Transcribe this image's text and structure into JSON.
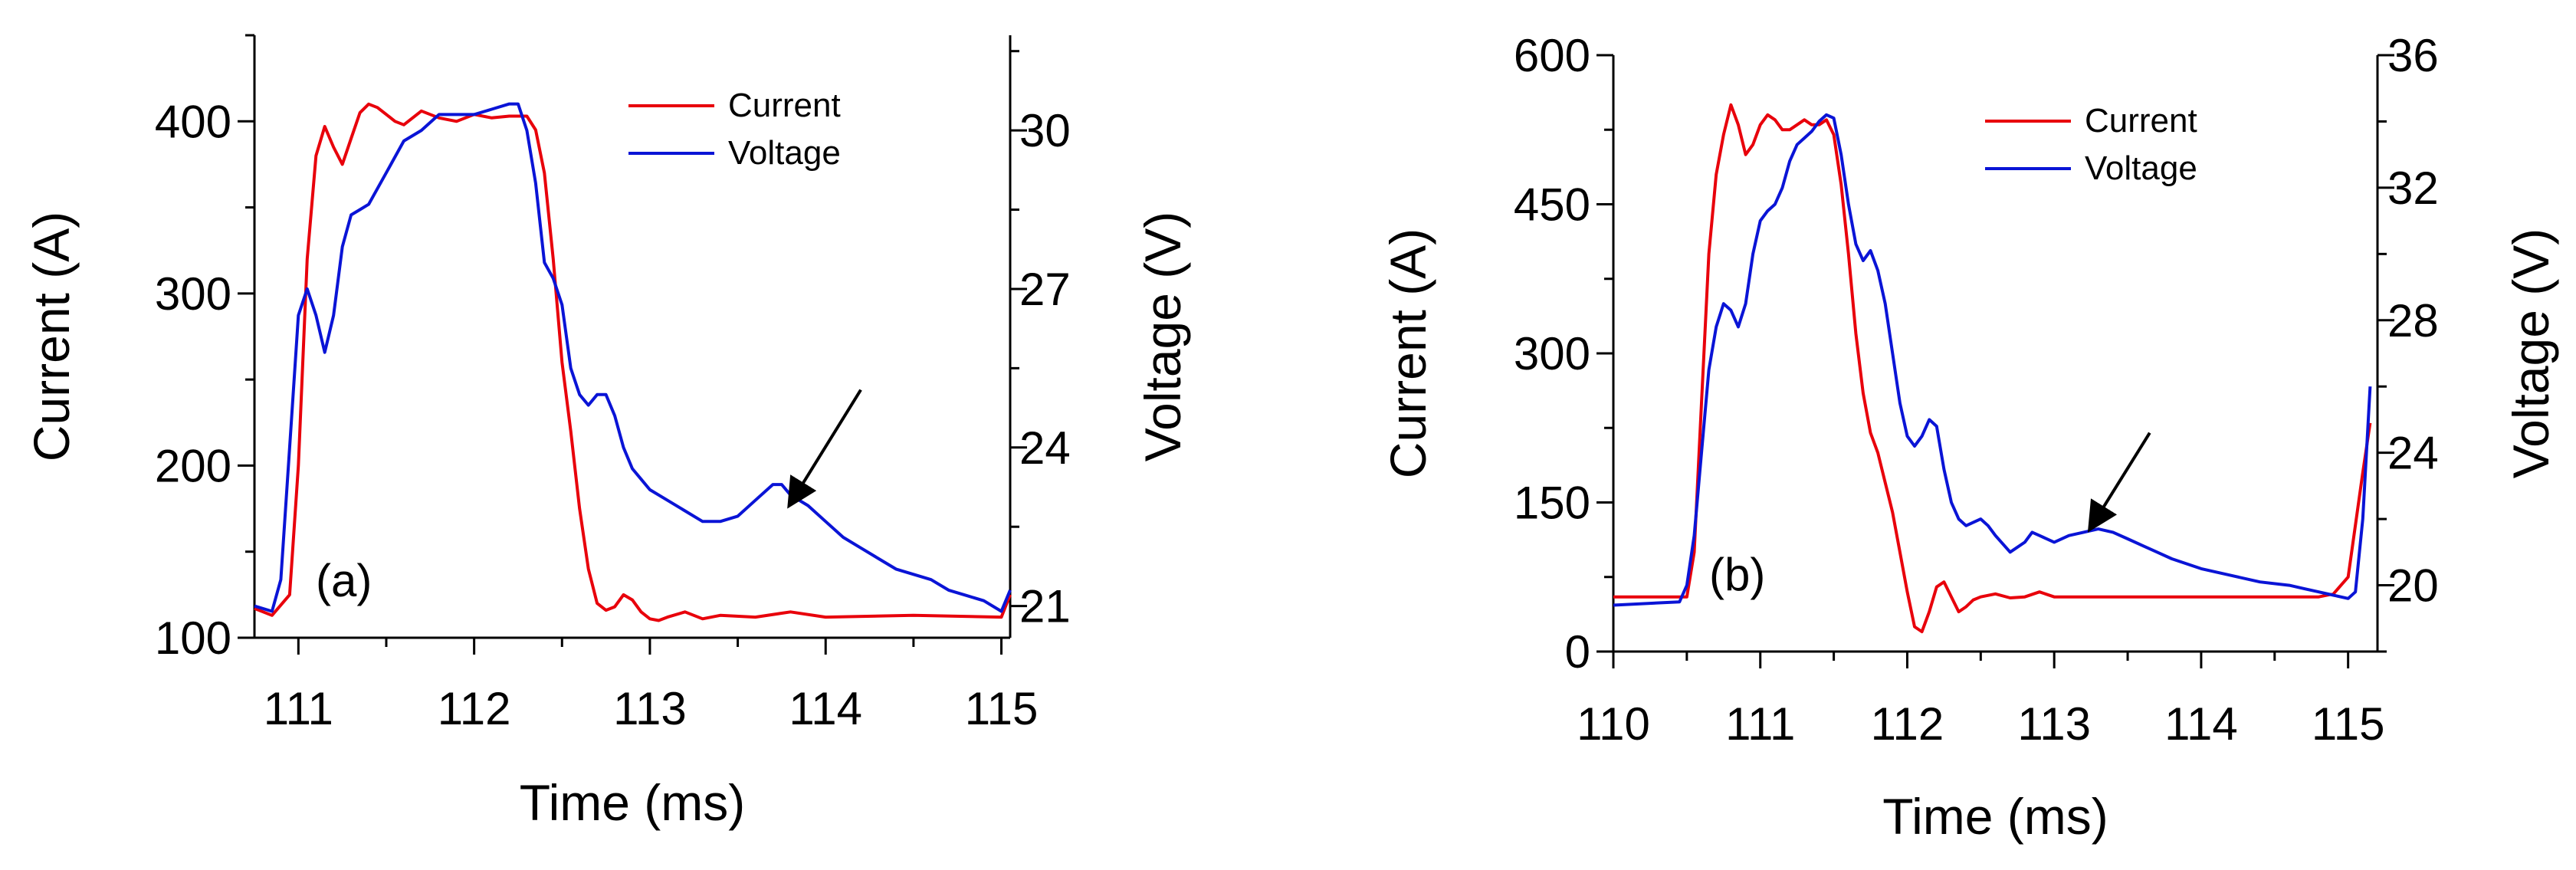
{
  "colors": {
    "current": "#e8000b",
    "voltage": "#0a14d6",
    "axis": "#000000",
    "arrow": "#000000"
  },
  "chart_data": [
    {
      "type": "line",
      "panel_label": "(a)",
      "xlabel": "Time (ms)",
      "ylabel": "Current (A)",
      "y2label": "Voltage (V)",
      "xlim": [
        110.75,
        115.05
      ],
      "ylim": [
        100,
        450
      ],
      "y2lim": [
        20.4,
        31.8
      ],
      "xticks": [
        111,
        112,
        113,
        114,
        115
      ],
      "yticks": [
        100,
        200,
        300,
        400
      ],
      "y2ticks": [
        21,
        24,
        27,
        30
      ],
      "legend": [
        "Current",
        "Voltage"
      ],
      "legend_position": "top-right",
      "arrow": {
        "from": [
          114.2,
          244
        ],
        "to": [
          113.8,
          178
        ]
      },
      "series": [
        {
          "name": "Current",
          "axis": "left",
          "x": [
            110.75,
            110.85,
            110.95,
            111.0,
            111.05,
            111.1,
            111.15,
            111.2,
            111.25,
            111.3,
            111.35,
            111.4,
            111.45,
            111.5,
            111.55,
            111.6,
            111.7,
            111.8,
            111.9,
            112.0,
            112.1,
            112.2,
            112.3,
            112.35,
            112.4,
            112.45,
            112.5,
            112.55,
            112.6,
            112.65,
            112.7,
            112.75,
            112.8,
            112.85,
            112.9,
            112.95,
            113.0,
            113.05,
            113.1,
            113.2,
            113.3,
            113.4,
            113.6,
            113.8,
            114.0,
            114.5,
            115.0,
            115.05
          ],
          "y": [
            117,
            113,
            125,
            200,
            320,
            380,
            397,
            385,
            375,
            390,
            405,
            410,
            408,
            404,
            400,
            398,
            406,
            402,
            400,
            404,
            402,
            403,
            403,
            395,
            370,
            320,
            260,
            220,
            175,
            140,
            120,
            116,
            118,
            125,
            122,
            115,
            111,
            110,
            112,
            115,
            111,
            113,
            112,
            115,
            112,
            113,
            112,
            125
          ]
        },
        {
          "name": "Voltage",
          "axis": "right",
          "x": [
            110.75,
            110.85,
            110.9,
            110.95,
            111.0,
            111.05,
            111.1,
            111.15,
            111.2,
            111.25,
            111.3,
            111.35,
            111.4,
            111.5,
            111.6,
            111.7,
            111.8,
            111.9,
            112.0,
            112.1,
            112.2,
            112.25,
            112.3,
            112.35,
            112.4,
            112.45,
            112.5,
            112.55,
            112.6,
            112.65,
            112.7,
            112.75,
            112.8,
            112.85,
            112.9,
            112.95,
            113.0,
            113.1,
            113.2,
            113.3,
            113.4,
            113.5,
            113.6,
            113.7,
            113.75,
            113.8,
            113.9,
            114.0,
            114.1,
            114.2,
            114.3,
            114.4,
            114.5,
            114.6,
            114.7,
            114.8,
            114.9,
            115.0,
            115.05
          ],
          "y": [
            21.0,
            20.9,
            21.5,
            24.0,
            26.5,
            27.0,
            26.5,
            25.8,
            26.5,
            27.8,
            28.4,
            28.5,
            28.6,
            29.2,
            29.8,
            30.0,
            30.3,
            30.3,
            30.3,
            30.4,
            30.5,
            30.5,
            30.0,
            29.0,
            27.5,
            27.2,
            26.7,
            25.5,
            25.0,
            24.8,
            25.0,
            25.0,
            24.6,
            24.0,
            23.6,
            23.4,
            23.2,
            23.0,
            22.8,
            22.6,
            22.6,
            22.7,
            23.0,
            23.3,
            23.3,
            23.1,
            22.9,
            22.6,
            22.3,
            22.1,
            21.9,
            21.7,
            21.6,
            21.5,
            21.3,
            21.2,
            21.1,
            20.9,
            21.3
          ]
        }
      ]
    },
    {
      "type": "line",
      "panel_label": "(b)",
      "xlabel": "Time (ms)",
      "ylabel": "Current (A)",
      "y2label": "Voltage (V)",
      "xlim": [
        110,
        115.2
      ],
      "ylim": [
        0,
        600
      ],
      "y2lim": [
        18.0,
        36.0
      ],
      "xticks": [
        110,
        111,
        112,
        113,
        114,
        115
      ],
      "yticks": [
        0,
        150,
        300,
        450,
        600
      ],
      "y2ticks": [
        20,
        24,
        28,
        32,
        36
      ],
      "legend": [
        "Current",
        "Voltage"
      ],
      "legend_position": "top-right",
      "arrow": {
        "from": [
          113.65,
          220
        ],
        "to": [
          113.25,
          125
        ]
      },
      "series": [
        {
          "name": "Current",
          "axis": "left",
          "x": [
            110.0,
            110.5,
            110.55,
            110.6,
            110.65,
            110.7,
            110.75,
            110.8,
            110.85,
            110.9,
            110.95,
            111.0,
            111.05,
            111.1,
            111.15,
            111.2,
            111.25,
            111.3,
            111.35,
            111.4,
            111.45,
            111.5,
            111.55,
            111.6,
            111.65,
            111.7,
            111.75,
            111.8,
            111.85,
            111.9,
            111.95,
            112.0,
            112.05,
            112.1,
            112.15,
            112.2,
            112.25,
            112.3,
            112.35,
            112.4,
            112.45,
            112.5,
            112.6,
            112.7,
            112.8,
            112.9,
            113.0,
            113.5,
            114.0,
            114.5,
            114.8,
            114.9,
            115.0,
            115.1,
            115.15
          ],
          "y": [
            55,
            55,
            100,
            250,
            400,
            480,
            520,
            550,
            530,
            500,
            510,
            530,
            540,
            535,
            525,
            525,
            530,
            535,
            530,
            530,
            535,
            520,
            470,
            400,
            320,
            260,
            220,
            200,
            170,
            140,
            100,
            60,
            25,
            20,
            40,
            65,
            70,
            55,
            40,
            45,
            52,
            55,
            58,
            54,
            55,
            60,
            55,
            55,
            55,
            55,
            55,
            58,
            75,
            180,
            230
          ]
        },
        {
          "name": "Voltage",
          "axis": "right",
          "x": [
            110.0,
            110.45,
            110.5,
            110.55,
            110.6,
            110.65,
            110.7,
            110.75,
            110.8,
            110.85,
            110.9,
            110.95,
            111.0,
            111.05,
            111.1,
            111.15,
            111.2,
            111.25,
            111.3,
            111.35,
            111.4,
            111.45,
            111.5,
            111.55,
            111.6,
            111.65,
            111.7,
            111.75,
            111.8,
            111.85,
            111.9,
            111.95,
            112.0,
            112.05,
            112.1,
            112.15,
            112.2,
            112.25,
            112.3,
            112.35,
            112.4,
            112.45,
            112.5,
            112.55,
            112.6,
            112.7,
            112.8,
            112.85,
            112.9,
            113.0,
            113.1,
            113.2,
            113.3,
            113.4,
            113.5,
            113.6,
            113.7,
            113.8,
            114.0,
            114.2,
            114.4,
            114.6,
            114.7,
            114.8,
            114.9,
            115.0,
            115.05,
            115.1,
            115.15
          ],
          "y": [
            19.4,
            19.5,
            20.0,
            21.5,
            24.0,
            26.5,
            27.8,
            28.5,
            28.3,
            27.8,
            28.5,
            30.0,
            31.0,
            31.3,
            31.5,
            32.0,
            32.8,
            33.3,
            33.5,
            33.7,
            34.0,
            34.2,
            34.1,
            33.0,
            31.5,
            30.3,
            29.8,
            30.1,
            29.5,
            28.5,
            27.0,
            25.5,
            24.5,
            24.2,
            24.5,
            25.0,
            24.8,
            23.5,
            22.5,
            22.0,
            21.8,
            21.9,
            22.0,
            21.8,
            21.5,
            21.0,
            21.3,
            21.6,
            21.5,
            21.3,
            21.5,
            21.6,
            21.7,
            21.6,
            21.4,
            21.2,
            21.0,
            20.8,
            20.5,
            20.3,
            20.1,
            20.0,
            19.9,
            19.8,
            19.7,
            19.6,
            19.8,
            22.0,
            26.0
          ]
        }
      ]
    }
  ]
}
